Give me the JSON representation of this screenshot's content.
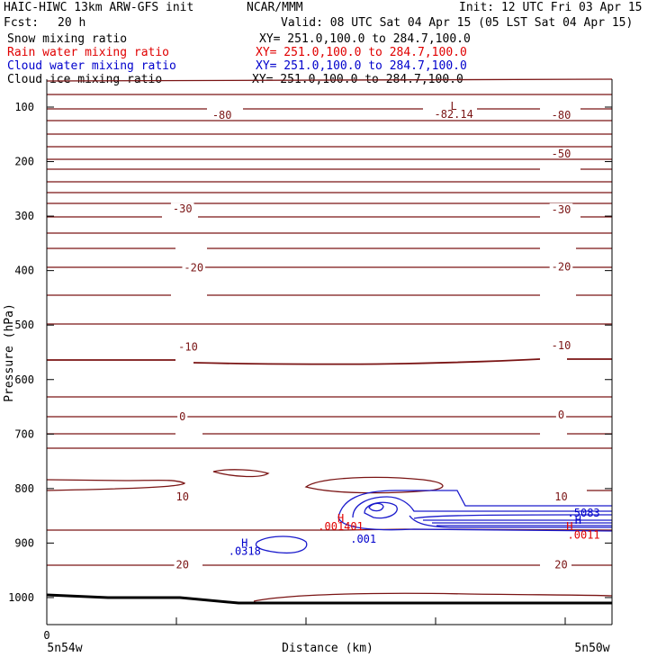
{
  "header": {
    "title": "HAIC-HIWC 13km ARW-GFS init",
    "org": "NCAR/MMM",
    "init": "Init: 12 UTC Fri 03 Apr 15",
    "fcst_label": "Fcst:",
    "fcst_value": "20 h",
    "valid": "Valid: 08 UTC Sat 04 Apr 15 (05 LST Sat 04 Apr 15)"
  },
  "fields": [
    {
      "name": "Snow mixing ratio",
      "xy": "XY= 251.0,100.0 to 284.7,100.0",
      "color": "#000000"
    },
    {
      "name": "Rain water mixing ratio",
      "xy": "XY= 251.0,100.0 to 284.7,100.0",
      "color": "#e00000"
    },
    {
      "name": "Cloud water mixing ratio",
      "xy": "XY= 251.0,100.0 to 284.7,100.0",
      "color": "#0000cc"
    },
    {
      "name": "Cloud ice mixing ratio",
      "xy": "XY= 251.0,100.0 to 284.7,100.0",
      "color": "#000000"
    }
  ],
  "chart_data": {
    "type": "contour",
    "xlabel": "Distance (km)",
    "ylabel": "Pressure (hPa)",
    "x_start_tick": "0",
    "x_left_label": "5n54w",
    "x_right_label": "5n50w",
    "y_ticks": [
      100,
      200,
      300,
      400,
      500,
      600,
      700,
      800,
      900,
      1000
    ],
    "ylim": [
      1050,
      75
    ],
    "temperature_color": "#7a1414",
    "temperature_labels": [
      {
        "text": "-80",
        "x": 0.31,
        "p": 115
      },
      {
        "text": "-82.14",
        "x": 0.72,
        "p": 113
      },
      {
        "text": "-80",
        "x": 0.91,
        "p": 115
      },
      {
        "text": "-50",
        "x": 0.91,
        "p": 186
      },
      {
        "text": "-30",
        "x": 0.24,
        "p": 287
      },
      {
        "text": "-30",
        "x": 0.91,
        "p": 288
      },
      {
        "text": "-20",
        "x": 0.26,
        "p": 395
      },
      {
        "text": "-20",
        "x": 0.91,
        "p": 393
      },
      {
        "text": "-10",
        "x": 0.25,
        "p": 540
      },
      {
        "text": "-10",
        "x": 0.91,
        "p": 538
      },
      {
        "text": "0",
        "x": 0.24,
        "p": 668
      },
      {
        "text": "0",
        "x": 0.91,
        "p": 665
      },
      {
        "text": "10",
        "x": 0.24,
        "p": 815
      },
      {
        "text": "10",
        "x": 0.91,
        "p": 815
      },
      {
        "text": "20",
        "x": 0.24,
        "p": 940
      },
      {
        "text": "20",
        "x": 0.91,
        "p": 940
      }
    ],
    "markers": [
      {
        "text": "L",
        "x": 0.72,
        "p": 98,
        "color": "#7a1414"
      },
      {
        "text": "H",
        "x": 0.52,
        "p": 855,
        "color": "#e00000"
      },
      {
        "text": ".001401",
        "x": 0.52,
        "p": 870,
        "color": "#e00000"
      },
      {
        "text": ".001",
        "x": 0.56,
        "p": 893,
        "color": "#0000cc"
      },
      {
        "text": "H",
        "x": 0.35,
        "p": 900,
        "color": "#0000cc"
      },
      {
        "text": ".0318",
        "x": 0.35,
        "p": 915,
        "color": "#0000cc"
      },
      {
        "text": "H",
        "x": 0.94,
        "p": 858,
        "color": "#0000cc"
      },
      {
        "text": ".5083",
        "x": 0.95,
        "p": 845,
        "color": "#0000cc"
      },
      {
        "text": "H",
        "x": 0.925,
        "p": 870,
        "color": "#e00000"
      },
      {
        "text": ".0011",
        "x": 0.95,
        "p": 885,
        "color": "#e00000"
      }
    ]
  }
}
